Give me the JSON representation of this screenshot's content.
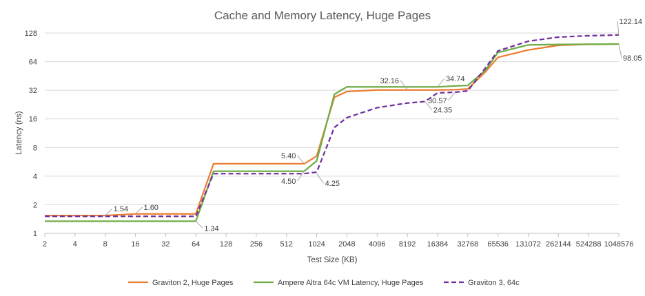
{
  "chart_data": {
    "type": "line",
    "title": "Cache and Memory Latency, Huge Pages",
    "xlabel": "Test Size (KB)",
    "ylabel": "Latency (ns)",
    "y_scale": "log2",
    "ylim": [
      1,
      128
    ],
    "y_ticks": [
      1,
      2,
      4,
      8,
      16,
      32,
      64,
      128
    ],
    "x_scale": "log2",
    "xlim": [
      2,
      1048576
    ],
    "x_ticks": [
      "2",
      "4",
      "8",
      "16",
      "32",
      "64",
      "128",
      "256",
      "512",
      "1024",
      "2048",
      "4096",
      "8192",
      "16384",
      "32768",
      "65536",
      "131072",
      "262144",
      "524288",
      "1048576"
    ],
    "grid": "horizontal",
    "legend": "bottom",
    "series": [
      {
        "name": "Graviton 2, Huge Pages",
        "color": "#ED7D31",
        "dash": "solid",
        "points": [
          [
            2,
            1.54
          ],
          [
            4,
            1.54
          ],
          [
            8,
            1.54
          ],
          [
            16,
            1.6
          ],
          [
            32,
            1.6
          ],
          [
            64,
            1.6
          ],
          [
            96,
            5.4
          ],
          [
            128,
            5.4
          ],
          [
            256,
            5.4
          ],
          [
            512,
            5.4
          ],
          [
            768,
            5.4
          ],
          [
            1024,
            6.5
          ],
          [
            1536,
            27
          ],
          [
            2048,
            31
          ],
          [
            4096,
            32.16
          ],
          [
            8192,
            32.16
          ],
          [
            16384,
            32.16
          ],
          [
            24576,
            32.5
          ],
          [
            32768,
            33
          ],
          [
            49152,
            50
          ],
          [
            65536,
            71
          ],
          [
            131072,
            85
          ],
          [
            262144,
            95
          ],
          [
            524288,
            97.5
          ],
          [
            1048576,
            98.05
          ]
        ]
      },
      {
        "name": "Ampere Altra 64c VM Latency, Huge Pages",
        "color": "#70AD47",
        "dash": "solid",
        "points": [
          [
            2,
            1.34
          ],
          [
            4,
            1.34
          ],
          [
            8,
            1.34
          ],
          [
            16,
            1.34
          ],
          [
            32,
            1.34
          ],
          [
            64,
            1.34
          ],
          [
            96,
            4.5
          ],
          [
            128,
            4.5
          ],
          [
            256,
            4.5
          ],
          [
            512,
            4.5
          ],
          [
            768,
            4.5
          ],
          [
            1024,
            5.8
          ],
          [
            1536,
            29
          ],
          [
            2048,
            34.74
          ],
          [
            4096,
            34.74
          ],
          [
            8192,
            34.74
          ],
          [
            16384,
            34.74
          ],
          [
            24576,
            35.5
          ],
          [
            32768,
            36
          ],
          [
            49152,
            52
          ],
          [
            65536,
            80
          ],
          [
            131072,
            96
          ],
          [
            262144,
            97
          ],
          [
            524288,
            97.5
          ],
          [
            1048576,
            98.05
          ]
        ]
      },
      {
        "name": "Graviton 3, 64c",
        "color": "#7030A0",
        "dash": "dashed",
        "points": [
          [
            2,
            1.51
          ],
          [
            4,
            1.51
          ],
          [
            8,
            1.51
          ],
          [
            16,
            1.51
          ],
          [
            32,
            1.51
          ],
          [
            64,
            1.51
          ],
          [
            96,
            4.25
          ],
          [
            128,
            4.25
          ],
          [
            256,
            4.25
          ],
          [
            512,
            4.25
          ],
          [
            768,
            4.25
          ],
          [
            1024,
            4.4
          ],
          [
            1536,
            13
          ],
          [
            2048,
            16.5
          ],
          [
            4096,
            21
          ],
          [
            8192,
            23.5
          ],
          [
            12288,
            24.35
          ],
          [
            16384,
            30
          ],
          [
            24576,
            30.57
          ],
          [
            32768,
            31.5
          ],
          [
            49152,
            55
          ],
          [
            65536,
            83
          ],
          [
            131072,
            105
          ],
          [
            262144,
            116
          ],
          [
            524288,
            120
          ],
          [
            1048576,
            122.14
          ]
        ]
      }
    ],
    "annotations": [
      {
        "text": "1.54",
        "x": 8,
        "y": 1.54,
        "dx": 10,
        "dy": -10
      },
      {
        "text": "1.60",
        "x": 16,
        "y": 1.6,
        "dx": 10,
        "dy": -10
      },
      {
        "text": "1.34",
        "x": 64,
        "y": 1.34,
        "dx": 10,
        "dy": 10
      },
      {
        "text": "5.40",
        "x": 768,
        "y": 5.4,
        "dx": -10,
        "dy": -12
      },
      {
        "text": "4.50",
        "x": 768,
        "y": 4.5,
        "dx": -10,
        "dy": 14
      },
      {
        "text": "4.25",
        "x": 1024,
        "y": 4.25,
        "dx": 10,
        "dy": 14
      },
      {
        "text": "32.16",
        "x": 8192,
        "y": 32.16,
        "dx": -10,
        "dy": -14
      },
      {
        "text": "34.74",
        "x": 16384,
        "y": 34.74,
        "dx": 10,
        "dy": -12
      },
      {
        "text": "24.35",
        "x": 12288,
        "y": 24.35,
        "dx": 10,
        "dy": 12
      },
      {
        "text": "30.57",
        "x": 24576,
        "y": 30.57,
        "dx": -10,
        "dy": 12
      },
      {
        "text": "122.14",
        "x": 1048576,
        "y": 122.14,
        "dx": -2,
        "dy": -20
      },
      {
        "text": "98.05",
        "x": 1048576,
        "y": 98.05,
        "dx": 4,
        "dy": 20
      }
    ]
  }
}
